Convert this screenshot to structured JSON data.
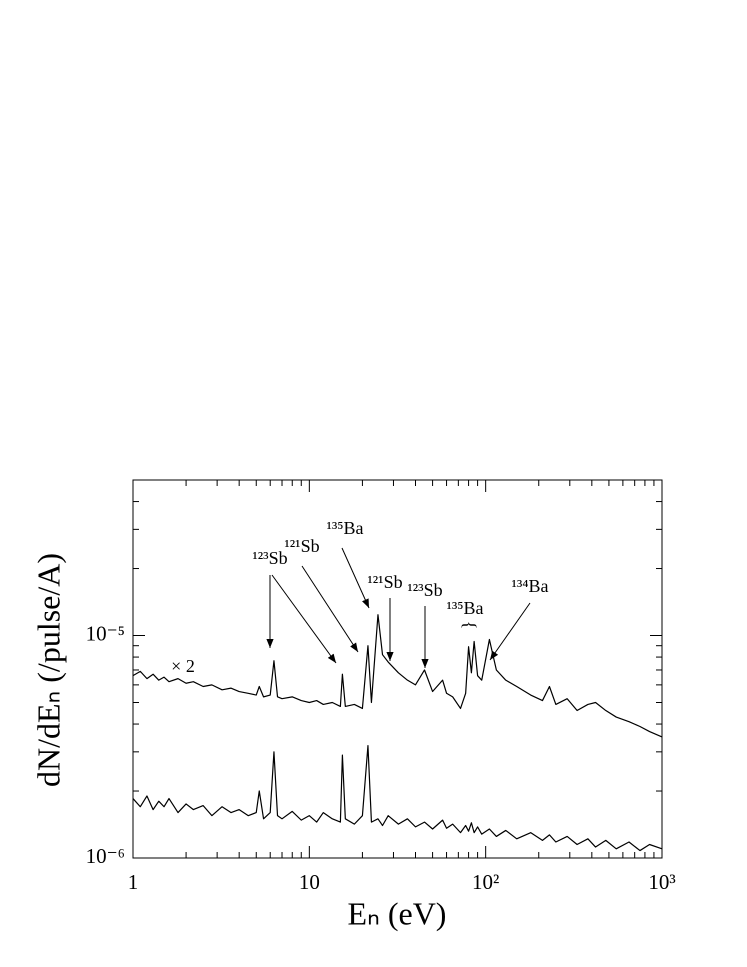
{
  "chart_data": {
    "type": "line",
    "xlabel": "Eₙ  (eV)",
    "ylabel": "dN/dEₙ (/pulse/A)",
    "log_x": true,
    "log_y": true,
    "color": "#000000",
    "xlim": [
      1,
      1000
    ],
    "ylim": [
      1e-06,
      5e-05
    ],
    "xticks": [
      1,
      10,
      {
        "value": 100,
        "label": "10²"
      },
      {
        "value": 1000,
        "label": "10³"
      }
    ],
    "yticks": [
      {
        "value": 1e-06,
        "label": "10⁻⁶"
      },
      {
        "value": 1e-05,
        "label": "10⁻⁵"
      }
    ],
    "xminorticks": [
      2,
      3,
      4,
      5,
      6,
      7,
      8,
      9,
      20,
      30,
      40,
      50,
      60,
      70,
      80,
      90,
      200,
      300,
      400,
      500,
      600,
      700,
      800,
      900
    ],
    "yminorticks": [
      2e-06,
      3e-06,
      4e-06,
      5e-06,
      6e-06,
      7e-06,
      8e-06,
      9e-06,
      2e-05,
      3e-05,
      4e-05
    ],
    "x": [
      1,
      1.1,
      1.2,
      1.3,
      1.4,
      1.5,
      1.6,
      1.8,
      2,
      2.2,
      2.5,
      2.8,
      3.2,
      3.6,
      4,
      4.5,
      5,
      5.2,
      5.5,
      6,
      6.3,
      6.6,
      7,
      8,
      9,
      10,
      11,
      12,
      13.5,
      15,
      15.4,
      16,
      18,
      20,
      21.5,
      22.5,
      24.5,
      26,
      28,
      32,
      36,
      40,
      45,
      50,
      57,
      60,
      65,
      72,
      77,
      80,
      83,
      86,
      90,
      95,
      105,
      115,
      130,
      150,
      180,
      210,
      230,
      250,
      290,
      330,
      380,
      420,
      480,
      550,
      650,
      750,
      850,
      1000
    ],
    "series": [
      {
        "color": "#000000",
        "values": [
          6.6e-06,
          6.9e-06,
          6.4e-06,
          6.7e-06,
          6.3e-06,
          6.5e-06,
          6.2e-06,
          6.4e-06,
          6.1e-06,
          6.2e-06,
          5.9e-06,
          6e-06,
          5.7e-06,
          5.8e-06,
          5.6e-06,
          5.5e-06,
          5.4e-06,
          5.9e-06,
          5.3e-06,
          5.4e-06,
          7.7e-06,
          5.3e-06,
          5.2e-06,
          5.3e-06,
          5.1e-06,
          5e-06,
          5.1e-06,
          4.9e-06,
          5e-06,
          4.8e-06,
          6.7e-06,
          4.8e-06,
          4.9e-06,
          4.7e-06,
          9e-06,
          5e-06,
          1.24e-05,
          8.2e-06,
          7.6e-06,
          6.8e-06,
          6.3e-06,
          6e-06,
          7e-06,
          5.6e-06,
          6.3e-06,
          5.5e-06,
          5.3e-06,
          4.7e-06,
          5.5e-06,
          8.9e-06,
          6.8e-06,
          9.4e-06,
          6.6e-06,
          6.3e-06,
          9.6e-06,
          7e-06,
          6.3e-06,
          5.9e-06,
          5.4e-06,
          5.1e-06,
          5.9e-06,
          4.9e-06,
          5.2e-06,
          4.6e-06,
          4.9e-06,
          5e-06,
          4.6e-06,
          4.3e-06,
          4.1e-06,
          3.9e-06,
          3.7e-06,
          3.5e-06
        ]
      },
      {
        "color": "#000000",
        "values": [
          1.85e-06,
          1.7e-06,
          1.9e-06,
          1.65e-06,
          1.8e-06,
          1.7e-06,
          1.85e-06,
          1.6e-06,
          1.75e-06,
          1.65e-06,
          1.72e-06,
          1.55e-06,
          1.7e-06,
          1.6e-06,
          1.65e-06,
          1.55e-06,
          1.6e-06,
          2e-06,
          1.5e-06,
          1.6e-06,
          3e-06,
          1.55e-06,
          1.5e-06,
          1.62e-06,
          1.48e-06,
          1.55e-06,
          1.45e-06,
          1.6e-06,
          1.5e-06,
          1.45e-06,
          2.9e-06,
          1.5e-06,
          1.42e-06,
          1.55e-06,
          3.2e-06,
          1.45e-06,
          1.5e-06,
          1.4e-06,
          1.55e-06,
          1.42e-06,
          1.5e-06,
          1.38e-06,
          1.45e-06,
          1.35e-06,
          1.48e-06,
          1.36e-06,
          1.42e-06,
          1.3e-06,
          1.4e-06,
          1.32e-06,
          1.44e-06,
          1.3e-06,
          1.38e-06,
          1.28e-06,
          1.35e-06,
          1.25e-06,
          1.33e-06,
          1.22e-06,
          1.3e-06,
          1.2e-06,
          1.27e-06,
          1.18e-06,
          1.25e-06,
          1.15e-06,
          1.22e-06,
          1.12e-06,
          1.2e-06,
          1.1e-06,
          1.18e-06,
          1.08e-06,
          1.15e-06,
          1.1e-06
        ]
      }
    ],
    "annotations": [
      "¹²³Sb",
      "¹²¹Sb",
      "¹³⁵Ba",
      "¹²¹Sb",
      "¹²³Sb",
      "¹³⁵Ba",
      "}",
      "¹³⁴Ba",
      "× 2"
    ]
  }
}
